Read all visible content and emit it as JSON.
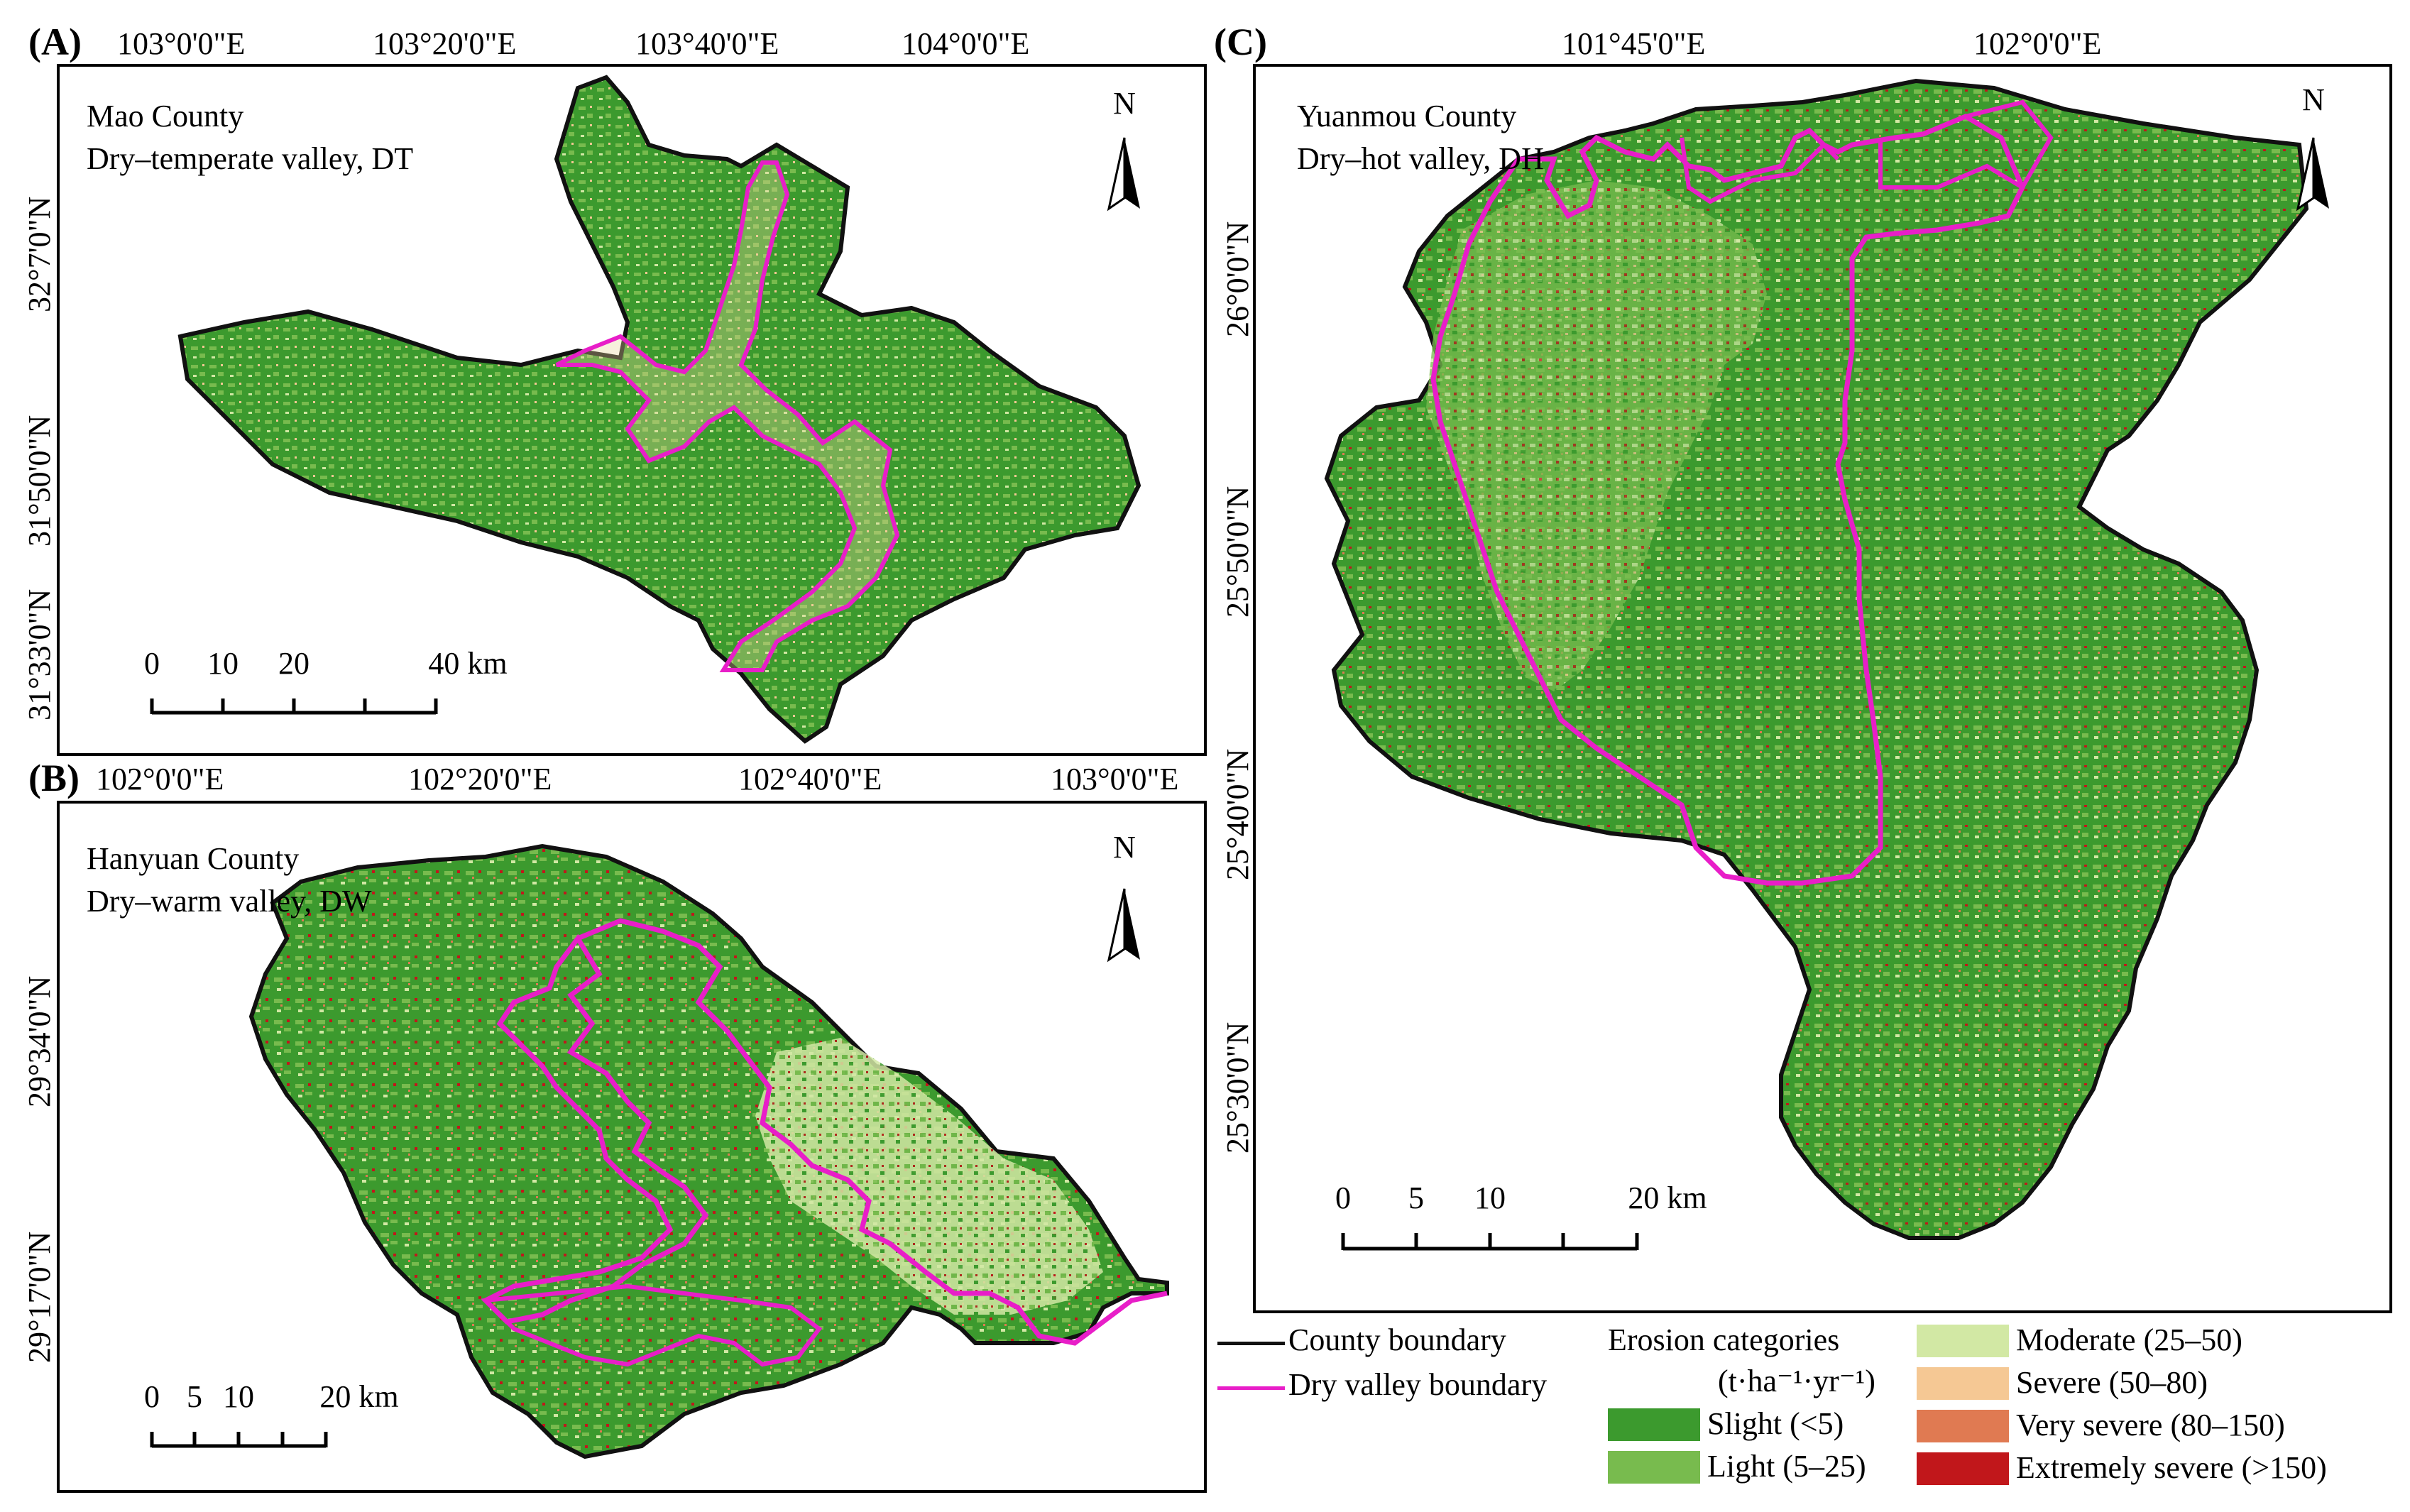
{
  "panels": {
    "A": {
      "letter": "(A)",
      "county": "Mao County",
      "valley": "Dry–temperate valley, DT",
      "lon_labels": [
        "103°0'0\"E",
        "103°20'0\"E",
        "103°40'0\"E",
        "104°0'0\"E"
      ],
      "lat_labels": [
        "32°7'0\"N",
        "31°50'0\"N",
        "31°33'0\"N"
      ],
      "scale": [
        "0",
        "10",
        "20",
        "40 km"
      ],
      "north": "N"
    },
    "B": {
      "letter": "(B)",
      "county": "Hanyuan County",
      "valley": "Dry–warm valley, DW",
      "lon_labels": [
        "102°0'0\"E",
        "102°20'0\"E",
        "102°40'0\"E",
        "103°0'0\"E"
      ],
      "lat_labels": [
        "29°34'0\"N",
        "29°17'0\"N"
      ],
      "scale": [
        "0",
        "5",
        "10",
        "20 km"
      ],
      "north": "N"
    },
    "C": {
      "letter": "(C)",
      "county": "Yuanmou County",
      "valley": "Dry–hot valley, DH",
      "lon_labels": [
        "101°45'0\"E",
        "102°0'0\"E"
      ],
      "lat_labels": [
        "26°0'0\"N",
        "25°50'0\"N",
        "25°40'0\"N",
        "25°30'0\"N"
      ],
      "scale": [
        "0",
        "5",
        "10",
        "20 km"
      ],
      "north": "N"
    }
  },
  "legend": {
    "county_boundary": "County boundary",
    "dry_valley_boundary": "Dry valley boundary",
    "erosion_title": "Erosion categories",
    "erosion_unit": "(t·ha⁻¹·yr⁻¹)",
    "categories": [
      {
        "label": "Slight (<5)",
        "color": "#3c9a2e"
      },
      {
        "label": "Light (5–25)",
        "color": "#78bb4e"
      },
      {
        "label": "Moderate (25–50)",
        "color": "#d2e8a4"
      },
      {
        "label": "Severe (50–80)",
        "color": "#f5c894"
      },
      {
        "label": "Very severe (80–150)",
        "color": "#e07a52"
      },
      {
        "label": "Extremely severe (>150)",
        "color": "#c1171b"
      }
    ]
  },
  "colors": {
    "county_boundary": "#111111",
    "dry_valley_boundary": "#e81ec8"
  }
}
